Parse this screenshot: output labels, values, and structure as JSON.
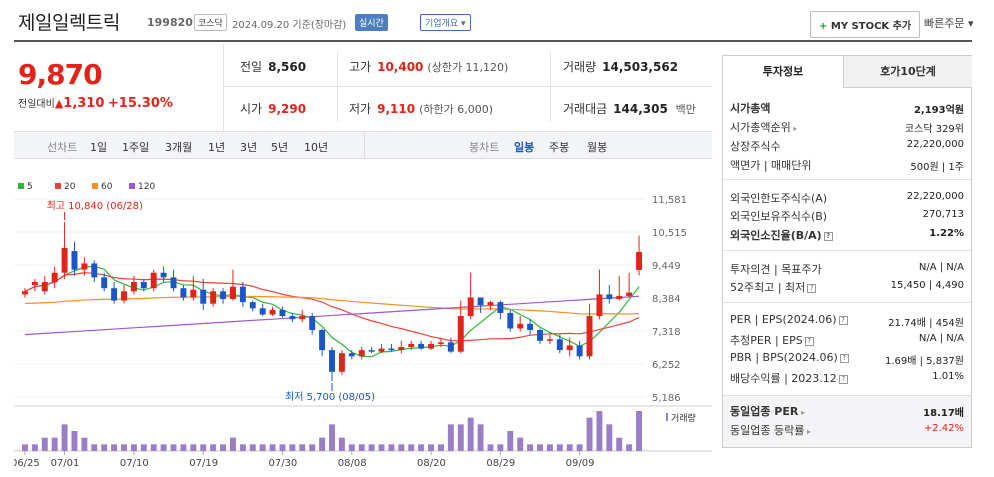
{
  "header": {
    "title": "제일일렉트릭",
    "code": "199820",
    "market": "코스닥",
    "date_info": "2024.09.20 기준(장마감)",
    "realtime": "실시간",
    "overview": "기업개요 ▾",
    "mystock": "MY STOCK 추가",
    "mystock_plus": "+",
    "quick_order": "빠른주문 ▾"
  },
  "quote": {
    "price": "9,870",
    "change_label": "전일대비",
    "change_arrow": "▲",
    "change_value": "1,310",
    "change_pct": "+15.30%",
    "prev_label": "전일",
    "prev": "8,560",
    "high_label": "고가",
    "high": "10,400",
    "high_limit": "(상한가 11,120)",
    "volume_label": "거래량",
    "volume": "14,503,562",
    "open_label": "시가",
    "open": "9,290",
    "low_label": "저가",
    "low": "9,110",
    "low_limit": "(하한가 6,000)",
    "amount_label": "거래대금",
    "amount": "144,305",
    "amount_unit": "백만"
  },
  "periods": {
    "line_label": "선차트",
    "items": [
      "1일",
      "1주일",
      "3개월",
      "1년",
      "3년",
      "5년",
      "10년"
    ],
    "candle_label": "봉차트",
    "candle_items": [
      "일봉",
      "주봉",
      "월봉"
    ],
    "candle_selected": "일봉"
  },
  "side": {
    "tab1": "투자정보",
    "tab2": "호가10단계",
    "market_cap_label": "시가총액",
    "market_cap": "2,193억원",
    "cap_rank_label": "시가총액순위",
    "cap_rank": "코스닥 329위",
    "shares_label": "상장주식수",
    "shares": "22,220,000",
    "par_label": "액면가 | 매매단위",
    "par": "500원 | 1주",
    "foreign_limit_label": "외국인한도주식수(A)",
    "foreign_limit": "22,220,000",
    "foreign_hold_label": "외국인보유주식수(B)",
    "foreign_hold": "270,713",
    "foreign_ratio_label": "외국인소진율(B/A)",
    "foreign_ratio": "1.22%",
    "opinion_label": "투자의견 | 목표주가",
    "opinion": "N/A | N/A",
    "w52_label": "52주최고 | 최저",
    "w52": "15,450 | 4,490",
    "per_label": "PER | EPS(2024.06)",
    "per": "21.74배 | 454원",
    "est_label": "추정PER | EPS",
    "est": "N/A | N/A",
    "pbr_label": "PBR | BPS(2024.06)",
    "pbr": "1.69배 | 5,837원",
    "div_label": "배당수익률 | 2023.12",
    "div": "1.01%",
    "sector_per_label": "동일업종 PER",
    "sector_per": "18.17배",
    "sector_rate_label": "동일업종 등락률",
    "sector_rate": "+2.42%"
  },
  "chart_data": {
    "type": "candlestick",
    "legend": [
      {
        "name": "5",
        "color": "#2db839"
      },
      {
        "name": "20",
        "color": "#e8433a"
      },
      {
        "name": "60",
        "color": "#f39323"
      },
      {
        "name": "120",
        "color": "#9b59d0"
      }
    ],
    "y_ticks": [
      11581,
      10515,
      9449,
      8384,
      7318,
      6252,
      5186
    ],
    "ylim": [
      5186,
      11581
    ],
    "x_labels": [
      "06/25",
      "07/01",
      "07/10",
      "07/19",
      "07/30",
      "08/08",
      "08/20",
      "08/29",
      "09/09"
    ],
    "max_label": "최고 10,840 (06/28)",
    "min_label": "최저 5,700 (08/05)",
    "volume_label": "거래량",
    "colors": {
      "up": "#e2231a",
      "down": "#1a56c8"
    },
    "candles": [
      [
        8500,
        8600,
        8400,
        8700,
        1
      ],
      [
        8800,
        8900,
        8600,
        9000,
        1
      ],
      [
        8600,
        8900,
        8500,
        9100,
        2
      ],
      [
        8900,
        9200,
        8700,
        9400,
        2
      ],
      [
        9200,
        10000,
        9000,
        10840,
        4
      ],
      [
        9900,
        9300,
        9100,
        10200,
        3
      ],
      [
        9300,
        9500,
        9100,
        9700,
        2
      ],
      [
        9500,
        9050,
        8900,
        9600,
        1
      ],
      [
        9050,
        8700,
        8600,
        9200,
        1
      ],
      [
        8700,
        8300,
        8200,
        8900,
        1
      ],
      [
        8300,
        8600,
        8200,
        8800,
        1
      ],
      [
        8600,
        8900,
        8500,
        9100,
        1
      ],
      [
        8900,
        8700,
        8600,
        9000,
        1
      ],
      [
        8700,
        9200,
        8600,
        9300,
        1
      ],
      [
        9200,
        9050,
        8900,
        9400,
        1
      ],
      [
        9050,
        8700,
        8600,
        9300,
        1
      ],
      [
        8700,
        8400,
        8300,
        8800,
        1
      ],
      [
        8400,
        8650,
        8300,
        9100,
        1
      ],
      [
        8650,
        8200,
        8000,
        9000,
        1
      ],
      [
        8200,
        8600,
        8100,
        8700,
        1
      ],
      [
        8600,
        8350,
        8200,
        8700,
        1
      ],
      [
        8350,
        8750,
        8300,
        9300,
        2
      ],
      [
        8750,
        8250,
        8100,
        8900,
        1
      ],
      [
        8250,
        8050,
        7950,
        8300,
        1
      ],
      [
        8050,
        7850,
        7800,
        8200,
        1
      ],
      [
        7850,
        8000,
        7800,
        8100,
        1
      ],
      [
        8000,
        7800,
        7750,
        8100,
        1
      ],
      [
        7800,
        7700,
        7600,
        7900,
        1
      ],
      [
        7700,
        7800,
        7600,
        8000,
        1
      ],
      [
        7800,
        7350,
        7200,
        7900,
        1
      ],
      [
        7350,
        6700,
        6500,
        7400,
        2
      ],
      [
        6700,
        6000,
        5700,
        6800,
        4
      ],
      [
        6000,
        6600,
        5900,
        6700,
        2
      ],
      [
        6600,
        6500,
        6400,
        6700,
        1
      ],
      [
        6500,
        6700,
        6400,
        6800,
        1
      ],
      [
        6700,
        6650,
        6600,
        6800,
        1
      ],
      [
        6650,
        6750,
        6600,
        6900,
        1
      ],
      [
        6750,
        6700,
        6650,
        6900,
        1
      ],
      [
        6700,
        6800,
        6600,
        7000,
        1
      ],
      [
        6800,
        6900,
        6700,
        7000,
        1
      ],
      [
        6900,
        6750,
        6700,
        7000,
        1
      ],
      [
        6750,
        6900,
        6700,
        7000,
        1
      ],
      [
        6900,
        6950,
        6800,
        7100,
        1
      ],
      [
        6950,
        6650,
        6600,
        7100,
        4
      ],
      [
        6650,
        7800,
        6600,
        8300,
        4
      ],
      [
        7800,
        8400,
        7700,
        9200,
        5
      ],
      [
        8400,
        8150,
        7900,
        8400,
        4
      ],
      [
        8150,
        8250,
        8000,
        8300,
        1
      ],
      [
        8250,
        7900,
        7700,
        8300,
        1
      ],
      [
        7900,
        7400,
        7300,
        8000,
        3
      ],
      [
        7400,
        7550,
        7300,
        7800,
        2
      ],
      [
        7550,
        7350,
        7200,
        7700,
        1
      ],
      [
        7350,
        7000,
        6900,
        7400,
        1
      ],
      [
        7000,
        7050,
        6900,
        7200,
        1
      ],
      [
        7050,
        6700,
        6600,
        7200,
        1
      ],
      [
        6700,
        6850,
        6500,
        7100,
        1
      ],
      [
        6850,
        6500,
        6400,
        7000,
        1
      ],
      [
        6500,
        7800,
        6400,
        8200,
        5
      ],
      [
        7800,
        8500,
        7700,
        9300,
        6
      ],
      [
        8500,
        8350,
        8200,
        8800,
        4
      ],
      [
        8350,
        8450,
        8300,
        9100,
        2
      ],
      [
        8450,
        8560,
        8400,
        9200,
        1
      ],
      [
        9290,
        9870,
        9110,
        10400,
        6
      ]
    ]
  }
}
